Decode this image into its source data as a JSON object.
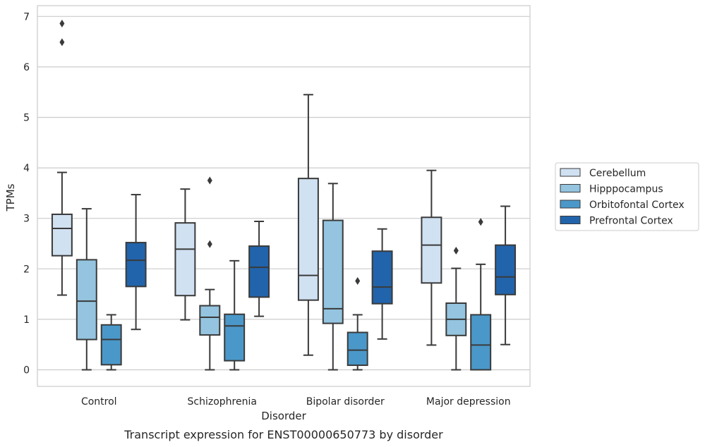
{
  "chart_data": {
    "type": "boxplot",
    "title": "",
    "caption": "Transcript expression for ENST00000650773 by disorder",
    "xlabel": "Disorder",
    "ylabel": "TPMs",
    "ylim": [
      -0.33,
      7.2
    ],
    "yticks": [
      0,
      1,
      2,
      3,
      4,
      5,
      6,
      7
    ],
    "grid": "horizontal",
    "legend": "right",
    "categories": [
      "Control",
      "Schizophrenia",
      "Bipolar disorder",
      "Major depression"
    ],
    "series": [
      {
        "name": "Cerebellum",
        "color": "#d0e1f2",
        "boxes": [
          {
            "whislo": 1.48,
            "q1": 2.26,
            "med": 2.8,
            "q3": 3.08,
            "whishi": 3.91,
            "fliers": [
              6.49,
              6.86
            ]
          },
          {
            "whislo": 0.99,
            "q1": 1.47,
            "med": 2.39,
            "q3": 2.91,
            "whishi": 3.58,
            "fliers": []
          },
          {
            "whislo": 0.29,
            "q1": 1.38,
            "med": 1.87,
            "q3": 3.79,
            "whishi": 5.45,
            "fliers": []
          },
          {
            "whislo": 0.49,
            "q1": 1.72,
            "med": 2.47,
            "q3": 3.02,
            "whishi": 3.95,
            "fliers": []
          }
        ]
      },
      {
        "name": "Hipppocampus",
        "color": "#94c4df",
        "boxes": [
          {
            "whislo": 0.0,
            "q1": 0.6,
            "med": 1.36,
            "q3": 2.18,
            "whishi": 3.19,
            "fliers": []
          },
          {
            "whislo": 0.0,
            "q1": 0.69,
            "med": 1.04,
            "q3": 1.27,
            "whishi": 1.59,
            "fliers": [
              2.49,
              3.75
            ]
          },
          {
            "whislo": 0.0,
            "q1": 0.92,
            "med": 1.21,
            "q3": 2.96,
            "whishi": 3.69,
            "fliers": []
          },
          {
            "whislo": 0.0,
            "q1": 0.68,
            "med": 1.0,
            "q3": 1.32,
            "whishi": 2.01,
            "fliers": [
              2.36
            ]
          }
        ]
      },
      {
        "name": "Orbitofontal Cortex",
        "color": "#4a98c9",
        "boxes": [
          {
            "whislo": 0.0,
            "q1": 0.1,
            "med": 0.6,
            "q3": 0.89,
            "whishi": 1.09,
            "fliers": []
          },
          {
            "whislo": 0.0,
            "q1": 0.18,
            "med": 0.87,
            "q3": 1.1,
            "whishi": 2.16,
            "fliers": []
          },
          {
            "whislo": 0.0,
            "q1": 0.09,
            "med": 0.39,
            "q3": 0.74,
            "whishi": 1.09,
            "fliers": [
              1.76
            ]
          },
          {
            "whislo": 0.0,
            "q1": 0.0,
            "med": 0.49,
            "q3": 1.09,
            "whishi": 2.09,
            "fliers": [
              2.93
            ]
          }
        ]
      },
      {
        "name": "Prefrontal Cortex",
        "color": "#2264ab",
        "boxes": [
          {
            "whislo": 0.8,
            "q1": 1.65,
            "med": 2.17,
            "q3": 2.52,
            "whishi": 3.47,
            "fliers": []
          },
          {
            "whislo": 1.06,
            "q1": 1.44,
            "med": 2.03,
            "q3": 2.45,
            "whishi": 2.94,
            "fliers": []
          },
          {
            "whislo": 0.61,
            "q1": 1.31,
            "med": 1.64,
            "q3": 2.35,
            "whishi": 2.79,
            "fliers": []
          },
          {
            "whislo": 0.5,
            "q1": 1.49,
            "med": 1.84,
            "q3": 2.47,
            "whishi": 3.24,
            "fliers": []
          }
        ]
      }
    ]
  }
}
